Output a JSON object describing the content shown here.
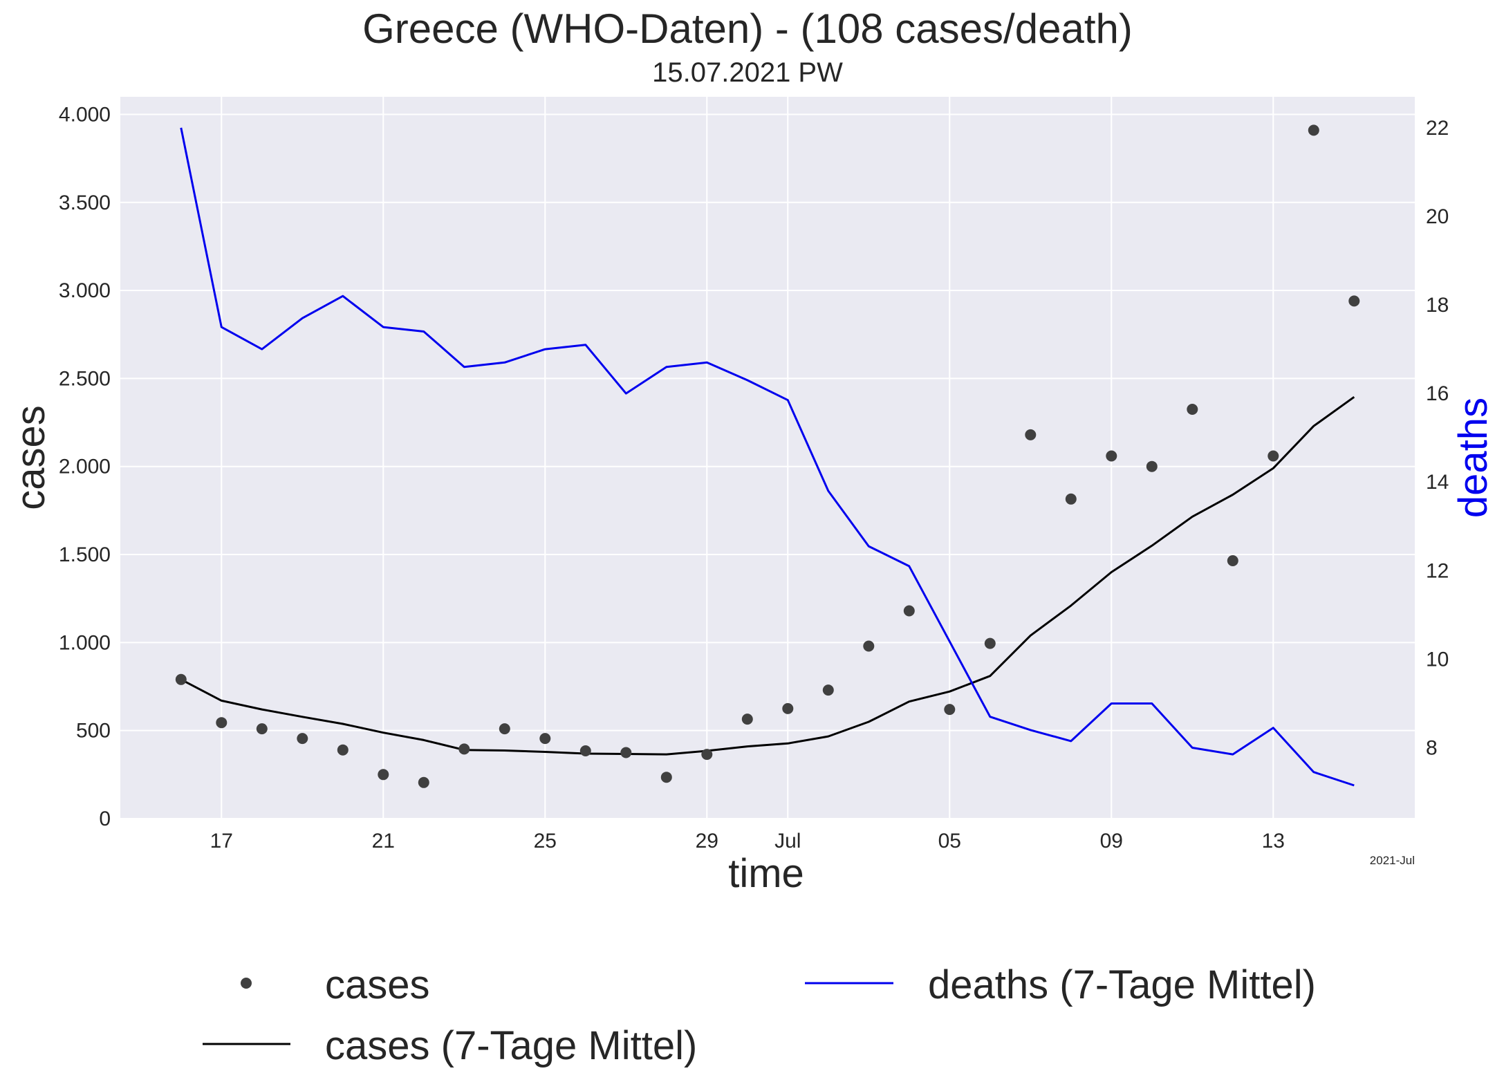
{
  "chart_data": {
    "type": "line",
    "title": "Greece (WHO-Daten) - (108 cases/death)",
    "subtitle": "15.07.2021 PW",
    "xlabel": "time",
    "ylabel": "cases",
    "y2label": "deaths",
    "x_offset_label": "2021-Jul",
    "x_dates": [
      "2021-06-16",
      "2021-06-17",
      "2021-06-18",
      "2021-06-19",
      "2021-06-20",
      "2021-06-21",
      "2021-06-22",
      "2021-06-23",
      "2021-06-24",
      "2021-06-25",
      "2021-06-26",
      "2021-06-27",
      "2021-06-28",
      "2021-06-29",
      "2021-06-30",
      "2021-07-01",
      "2021-07-02",
      "2021-07-03",
      "2021-07-04",
      "2021-07-05",
      "2021-07-06",
      "2021-07-07",
      "2021-07-08",
      "2021-07-09",
      "2021-07-10",
      "2021-07-11",
      "2021-07-12",
      "2021-07-13",
      "2021-07-14",
      "2021-07-15"
    ],
    "x_ticks": [
      {
        "date": "2021-06-17",
        "label": "17"
      },
      {
        "date": "2021-06-21",
        "label": "21"
      },
      {
        "date": "2021-06-25",
        "label": "25"
      },
      {
        "date": "2021-06-29",
        "label": "29"
      },
      {
        "date": "2021-07-01",
        "label": "Jul"
      },
      {
        "date": "2021-07-05",
        "label": "05"
      },
      {
        "date": "2021-07-09",
        "label": "09"
      },
      {
        "date": "2021-07-13",
        "label": "13"
      }
    ],
    "y_ticks": [
      {
        "value": 0,
        "label": "0"
      },
      {
        "value": 500,
        "label": "500"
      },
      {
        "value": 1000,
        "label": "1.000"
      },
      {
        "value": 1500,
        "label": "1.500"
      },
      {
        "value": 2000,
        "label": "2.000"
      },
      {
        "value": 2500,
        "label": "2.500"
      },
      {
        "value": 3000,
        "label": "3.000"
      },
      {
        "value": 3500,
        "label": "3.500"
      },
      {
        "value": 4000,
        "label": "4.000"
      }
    ],
    "y2_ticks": [
      {
        "value": 8,
        "label": "8"
      },
      {
        "value": 10,
        "label": "10"
      },
      {
        "value": 12,
        "label": "12"
      },
      {
        "value": 14,
        "label": "14"
      },
      {
        "value": 16,
        "label": "16"
      },
      {
        "value": 18,
        "label": "18"
      },
      {
        "value": 20,
        "label": "20"
      },
      {
        "value": 22,
        "label": "22"
      }
    ],
    "ylim": [
      0,
      4100
    ],
    "y2lim": [
      6.4,
      22.7
    ],
    "xlim": [
      "2021-06-14T12:00",
      "2021-07-16T12:00"
    ],
    "grid": true,
    "legend_position": "bottom",
    "series": [
      {
        "name": "cases",
        "type": "scatter",
        "color": "#404040",
        "axis": "left",
        "values": [
          790,
          545,
          510,
          455,
          390,
          250,
          205,
          395,
          510,
          455,
          385,
          375,
          235,
          365,
          565,
          625,
          730,
          980,
          1180,
          620,
          995,
          2180,
          1815,
          2060,
          2000,
          2325,
          1465,
          2060,
          3910,
          2940
        ]
      },
      {
        "name": "cases (7-Tage Mittel)",
        "type": "line",
        "color": "#000000",
        "axis": "left",
        "values": [
          790,
          670,
          620,
          578,
          538,
          488,
          446,
          390,
          387,
          379,
          369,
          367,
          365,
          385,
          410,
          427,
          467,
          550,
          665,
          722,
          810,
          1040,
          1210,
          1400,
          1550,
          1715,
          1840,
          1990,
          2230,
          2395
        ]
      },
      {
        "name": "deaths (7-Tage Mittel)",
        "type": "line",
        "color": "#0000ee",
        "axis": "right",
        "values": [
          22.0,
          17.5,
          17.0,
          17.7,
          18.2,
          17.5,
          17.4,
          16.6,
          16.7,
          17.0,
          17.1,
          16.0,
          16.6,
          16.7,
          16.3,
          15.85,
          13.8,
          12.55,
          12.1,
          10.4,
          8.7,
          8.4,
          8.15,
          9.0,
          9.0,
          8.0,
          7.85,
          8.45,
          7.45,
          7.15
        ]
      }
    ]
  }
}
